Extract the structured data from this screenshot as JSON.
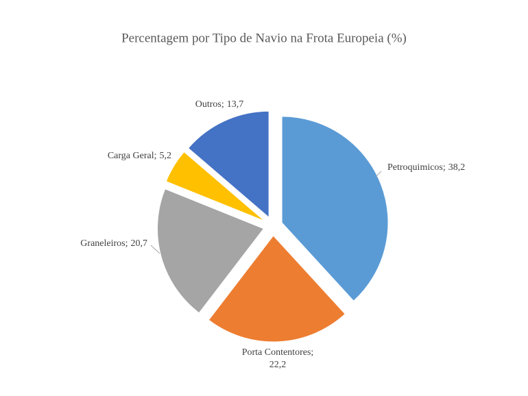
{
  "chart_data": {
    "type": "pie",
    "title": "Percentagem por Tipo de Navio na Frota Europeia (%)",
    "categories": [
      "Petroquimicos;",
      "Porta Contentores;",
      "Graneleiros;",
      "Carga Geral;",
      "Outros;"
    ],
    "values": [
      38.2,
      22.2,
      20.7,
      5.2,
      13.7
    ],
    "value_labels": [
      "38,2",
      "22,2",
      "20,7",
      "5,2",
      "13,7"
    ],
    "colors": [
      "#5b9bd5",
      "#ed7d31",
      "#a5a5a5",
      "#ffc000",
      "#4472c4"
    ]
  }
}
